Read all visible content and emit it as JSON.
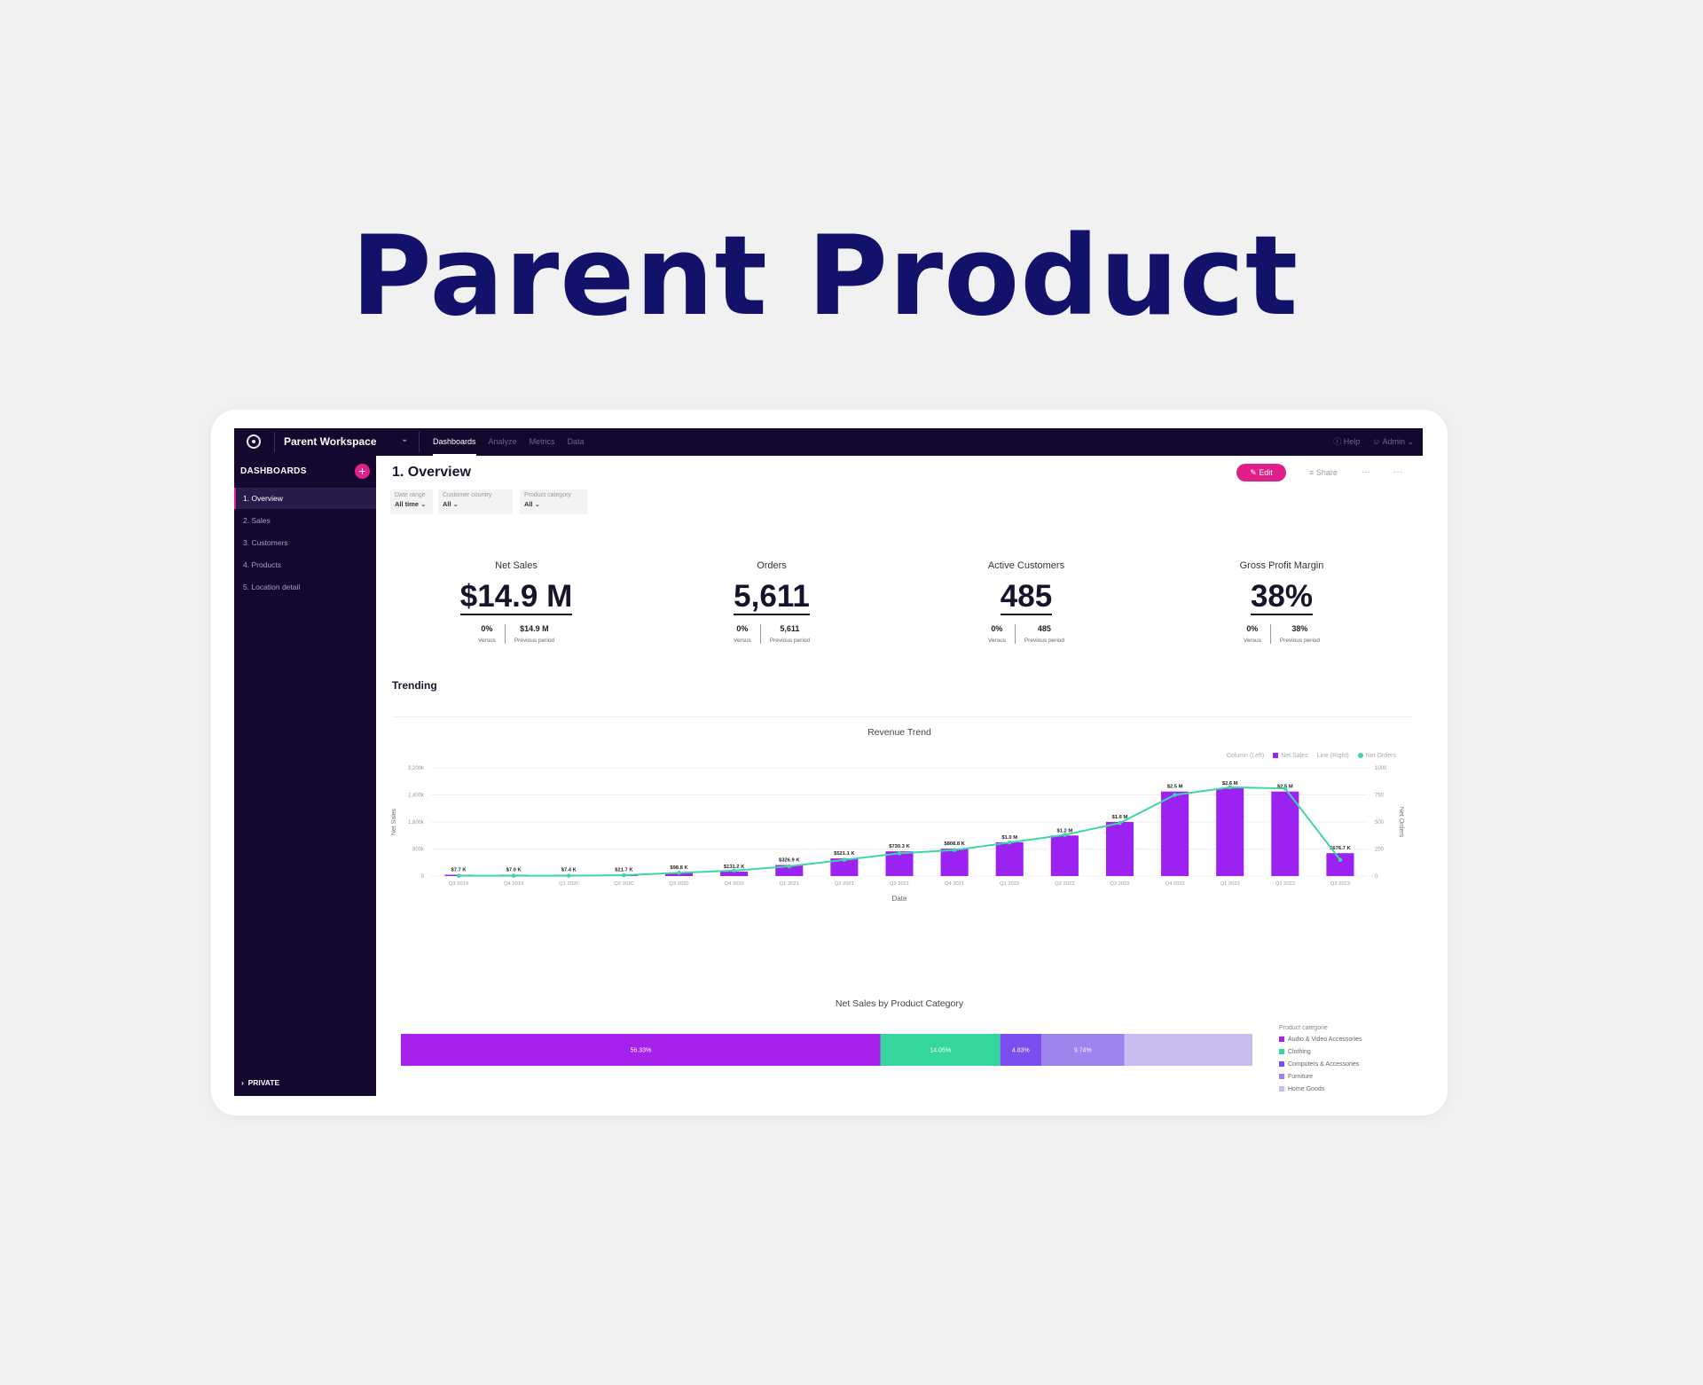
{
  "hero": {
    "title": "Parent Product"
  },
  "topbar": {
    "workspace": "Parent Workspace",
    "nav": [
      "Dashboards",
      "Analyze",
      "Metrics",
      "Data"
    ],
    "help": "Help",
    "user": "Admin"
  },
  "sidebar": {
    "header": "DASHBOARDS",
    "items": [
      "1. Overview",
      "2. Sales",
      "3. Customers",
      "4. Products",
      "5. Location detail"
    ],
    "private": "PRIVATE"
  },
  "page": {
    "title": "1. Overview",
    "edit_label": "Edit",
    "share_label": "Share",
    "more_label": "···"
  },
  "filters": [
    {
      "label": "Date range",
      "value": "All time"
    },
    {
      "label": "Customer country",
      "value": "All"
    },
    {
      "label": "Product category",
      "value": "All"
    }
  ],
  "kpis": [
    {
      "title": "Net Sales",
      "value": "$14.9 M",
      "versus": "0%",
      "versus_label": "Versus",
      "prev": "$14.9 M",
      "prev_label": "Previous period"
    },
    {
      "title": "Orders",
      "value": "5,611",
      "versus": "0%",
      "versus_label": "Versus",
      "prev": "5,611",
      "prev_label": "Previous period"
    },
    {
      "title": "Active Customers",
      "value": "485",
      "versus": "0%",
      "versus_label": "Versus",
      "prev": "485",
      "prev_label": "Previous period"
    },
    {
      "title": "Gross Profit Margin",
      "value": "38%",
      "versus": "0%",
      "versus_label": "Versus",
      "prev": "38%",
      "prev_label": "Previous period"
    }
  ],
  "section": {
    "trending": "Trending"
  },
  "colors": {
    "bar": "#9b22f0",
    "line": "#3fd6a3",
    "accent": "#e0208a",
    "dark": "#14082e",
    "title": "#12126a"
  },
  "chart_data": [
    {
      "type": "bar",
      "title": "Revenue Trend",
      "xlabel": "Date",
      "ylabel": "Net Sales",
      "y2label": "Net Orders",
      "legend": [
        "Column (Left)",
        "Net Sales",
        "Line (Right)",
        "Net Orders"
      ],
      "categories": [
        "Q3 2019",
        "Q4 2019",
        "Q1 2020",
        "Q2 2020",
        "Q3 2020",
        "Q4 2020",
        "Q1 2021",
        "Q2 2021",
        "Q3 2021",
        "Q4 2021",
        "Q1 2022",
        "Q2 2022",
        "Q3 2022",
        "Q4 2022",
        "Q1 2023",
        "Q2 2023",
        "Q3 2023"
      ],
      "series": [
        {
          "name": "Net Sales",
          "axis": "left",
          "values": [
            7700,
            7000,
            7400,
            21700,
            98800,
            131200,
            326900,
            521100,
            730300,
            808800,
            1000000,
            1200000,
            1600000,
            2500000,
            2600000,
            2500000,
            676700
          ],
          "labels": [
            "$7.7 K",
            "$7.0 K",
            "$7.4 K",
            "$21.7 K",
            "$98.8 K",
            "$131.2 K",
            "$326.9 K",
            "$521.1 K",
            "$730.3 K",
            "$808.8 K",
            "$1.0 M",
            "$1.2 M",
            "$1.6 M",
            "$2.5 M",
            "$2.6 M",
            "$2.5 M",
            "$676.7 K"
          ]
        },
        {
          "name": "Net Orders",
          "axis": "right",
          "values": [
            3,
            3,
            3,
            8,
            30,
            50,
            90,
            150,
            210,
            240,
            310,
            380,
            490,
            750,
            820,
            810,
            150
          ]
        }
      ],
      "y_ticks": [
        "0",
        "800k",
        "1,600k",
        "2,400k",
        "3,200k"
      ],
      "y2_ticks": [
        "0",
        "250",
        "500",
        "750",
        "1000"
      ],
      "ylim": [
        0,
        3200000
      ],
      "y2lim": [
        0,
        1000
      ]
    },
    {
      "type": "bar",
      "title": "Net Sales by Product Category",
      "stacked": true,
      "legend_title": "Product categorie",
      "segments": [
        {
          "name": "Audio & Video Accessories",
          "value": 56.33,
          "label": "56.33%",
          "color": "#a622ec"
        },
        {
          "name": "Clothing",
          "value": 14.05,
          "label": "14.05%",
          "color": "#34d69c"
        },
        {
          "name": "Computers & Accessories",
          "value": 4.83,
          "label": "4.83%",
          "color": "#7b4ef0"
        },
        {
          "name": "Furniture",
          "value": 9.74,
          "label": "9.74%",
          "color": "#9d83ec"
        },
        {
          "name": "Home Goods",
          "value": 15.05,
          "label": "",
          "color": "#c9bcf0"
        }
      ]
    }
  ]
}
